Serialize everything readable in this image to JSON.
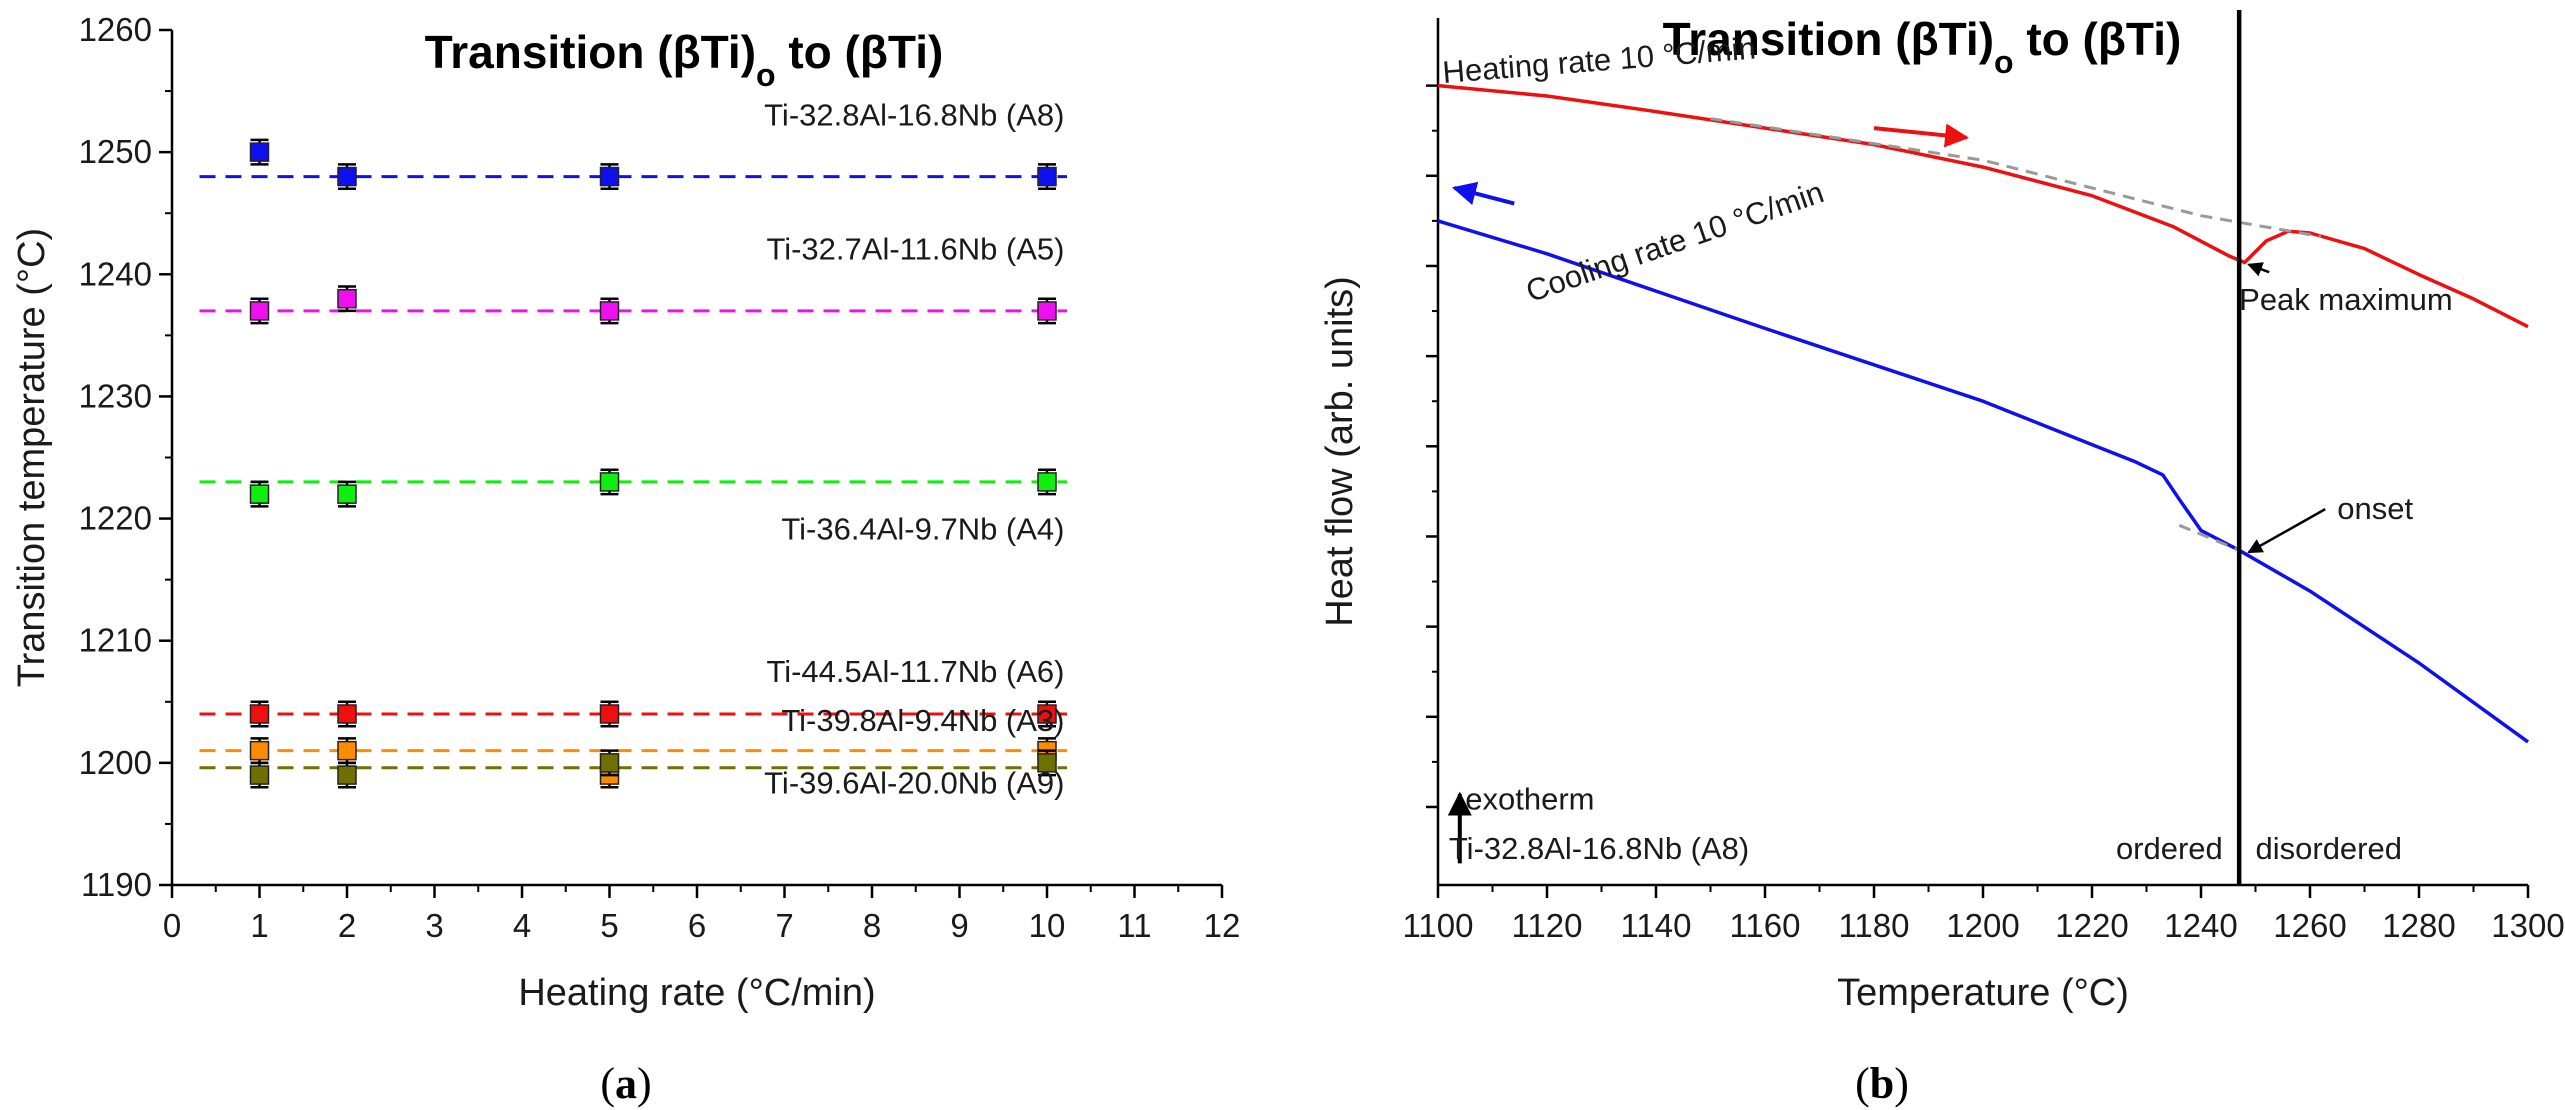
{
  "chart_data": [
    {
      "id": "a",
      "type": "scatter",
      "panel_label": "(a)",
      "panel_letter": "a",
      "title": "Transition (βTi)o to (βTi)",
      "title_parts": [
        "Transition (βTi)",
        "o",
        " to (βTi)"
      ],
      "xlabel": "Heating rate (°C/min)",
      "ylabel": "Transition temperature (°C)",
      "xlim": [
        0,
        12
      ],
      "ylim": [
        1190,
        1260
      ],
      "xticks": [
        0,
        1,
        2,
        3,
        4,
        5,
        6,
        7,
        8,
        9,
        10,
        11,
        12
      ],
      "yticks": [
        1190,
        1200,
        1210,
        1220,
        1230,
        1240,
        1250,
        1260
      ],
      "grid": false,
      "series": [
        {
          "name": "Ti-32.8Al-16.8Nb (A8)",
          "color": "#1010ee",
          "x": [
            1,
            2,
            5,
            10
          ],
          "y": [
            1250,
            1248,
            1248,
            1248
          ],
          "err": 1,
          "mean": 1248,
          "label_anchor": [
            10.2,
            1252.2
          ],
          "label_align": "end"
        },
        {
          "name": "Ti-32.7Al-11.6Nb (A5)",
          "color": "#ee10ee",
          "x": [
            1,
            2,
            5,
            10
          ],
          "y": [
            1237,
            1238,
            1237,
            1237
          ],
          "err": 1,
          "mean": 1237,
          "label_anchor": [
            10.2,
            1241.2
          ],
          "label_align": "end"
        },
        {
          "name": "Ti-36.4Al-9.7Nb (A4)",
          "color": "#10ee10",
          "x": [
            1,
            2,
            5,
            10
          ],
          "y": [
            1222,
            1222,
            1223,
            1223
          ],
          "err": 1,
          "mean": 1223,
          "label_anchor": [
            10.2,
            1218.3
          ],
          "label_align": "end"
        },
        {
          "name": "Ti-44.5Al-11.7Nb (A6)",
          "color": "#ee1010",
          "x": [
            1,
            2,
            5,
            10
          ],
          "y": [
            1204,
            1204,
            1204,
            1204
          ],
          "err": 1,
          "mean": 1204,
          "label_anchor": [
            10.2,
            1206.6
          ],
          "label_align": "end"
        },
        {
          "name": "Ti-39.8Al-9.4Nb (A3)",
          "color": "#ff8c00",
          "x": [
            1,
            2,
            5,
            10
          ],
          "y": [
            1201,
            1201,
            1199,
            1201
          ],
          "err": 1,
          "mean": 1201,
          "label_anchor": [
            10.2,
            1202.6
          ],
          "label_align": "end"
        },
        {
          "name": "Ti-39.6Al-20.0Nb (A9)",
          "color": "#707000",
          "x": [
            1,
            2,
            5,
            10
          ],
          "y": [
            1199,
            1199,
            1200,
            1200
          ],
          "err": 1,
          "mean": 1199.6,
          "label_anchor": [
            10.2,
            1197.5
          ],
          "label_align": "end"
        }
      ]
    },
    {
      "id": "b",
      "type": "line",
      "panel_label": "(b)",
      "panel_letter": "b",
      "title": "Transition (βTi)o to (βTi)",
      "title_parts": [
        "Transition (βTi)",
        "o",
        " to (βTi)"
      ],
      "xlabel": "Temperature (°C)",
      "ylabel": "Heat flow (arb. units)",
      "xlim": [
        1100,
        1300
      ],
      "ylim": [
        0,
        100
      ],
      "xticks": [
        1100,
        1120,
        1140,
        1160,
        1180,
        1200,
        1220,
        1240,
        1260,
        1280,
        1300
      ],
      "y_ticks_unlabeled": [
        9,
        19.4,
        29.8,
        40.2,
        50.6,
        61,
        71.4,
        81.8,
        92.2
      ],
      "grid": false,
      "vline_x": 1247,
      "series": [
        {
          "name": "Heating rate 10 °C/min",
          "color": "#ee1010",
          "direction": "heating",
          "x": [
            1100,
            1120,
            1140,
            1160,
            1180,
            1200,
            1220,
            1235,
            1245,
            1248,
            1252,
            1256,
            1260,
            1270,
            1280,
            1290,
            1300
          ],
          "y": [
            92.2,
            91.0,
            89.2,
            87.3,
            85.4,
            82.8,
            79.5,
            75.9,
            72.6,
            71.8,
            74.3,
            75.4,
            75.2,
            73.4,
            70.4,
            67.6,
            64.4
          ]
        },
        {
          "name": "Cooling rate 10 °C/min",
          "color": "#1010ee",
          "direction": "cooling",
          "x": [
            1100,
            1120,
            1140,
            1160,
            1180,
            1200,
            1220,
            1228,
            1233,
            1236,
            1240,
            1247,
            1260,
            1280,
            1300
          ],
          "y": [
            76.6,
            72.8,
            68.5,
            64.2,
            60.0,
            55.8,
            50.8,
            48.8,
            47.3,
            44.5,
            40.9,
            38.6,
            33.9,
            25.6,
            16.5
          ]
        },
        {
          "name": "heating baseline",
          "color": "#999999",
          "dashed": true,
          "x": [
            1150,
            1200,
            1240,
            1262
          ],
          "y": [
            88.4,
            83.6,
            77.2,
            74.8
          ]
        },
        {
          "name": "onset tangent",
          "color": "#999999",
          "dashed": true,
          "x": [
            1236,
            1247
          ],
          "y": [
            41.5,
            38.6
          ]
        }
      ],
      "annotations": [
        {
          "text": "Heating rate 10 °C/min",
          "kind": "series_label",
          "color": "#ee1010",
          "anchor": [
            1101,
            92.5
          ],
          "rotate": -4.5
        },
        {
          "text": "Cooling rate 10 °C/min",
          "kind": "series_label",
          "color": "#1010ee",
          "anchor": [
            1117,
            67.2
          ],
          "rotate": -19
        },
        {
          "text": "Peak maximum",
          "kind": "callout",
          "anchor": [
            1247,
            66.3
          ],
          "align": "start",
          "target": [
            1248,
            71.8
          ]
        },
        {
          "text": "onset",
          "kind": "callout",
          "anchor": [
            1265,
            42.2
          ],
          "align": "start",
          "target": [
            1248,
            38.6
          ]
        },
        {
          "text": "exotherm",
          "kind": "note",
          "anchor": [
            1105,
            8.7
          ],
          "align": "start"
        },
        {
          "text": "Ti-32.8Al-16.8Nb (A8)",
          "kind": "note",
          "anchor": [
            1102,
            3.0
          ],
          "align": "start"
        },
        {
          "text": "ordered",
          "kind": "region",
          "anchor": [
            1244,
            3.0
          ],
          "align": "end"
        },
        {
          "text": "disordered",
          "kind": "region",
          "anchor": [
            1250,
            3.0
          ],
          "align": "start"
        }
      ],
      "direction_arrows": [
        {
          "series": "heating",
          "from": [
            1180,
            87.3
          ],
          "to": [
            1197,
            86.2
          ],
          "color": "#ee1010"
        },
        {
          "series": "cooling",
          "from": [
            1114,
            78.6
          ],
          "to": [
            1103,
            80.4
          ],
          "color": "#1010ee"
        },
        {
          "series": "exotherm",
          "from": [
            1104,
            2.5
          ],
          "to": [
            1104,
            10.5
          ],
          "color": "#000000"
        }
      ]
    }
  ]
}
